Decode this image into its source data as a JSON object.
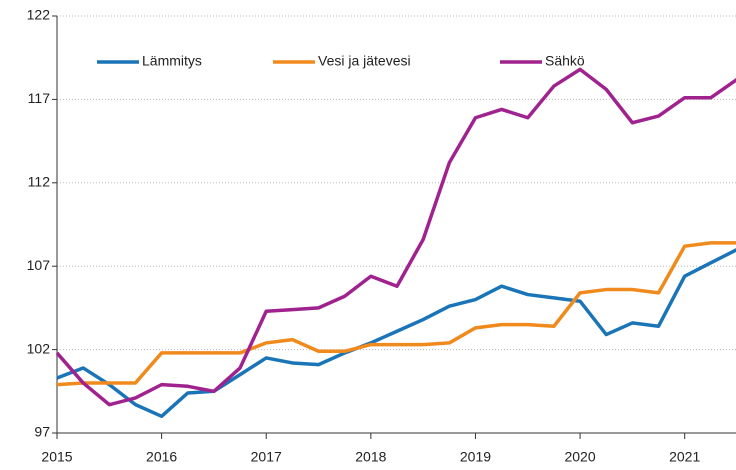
{
  "chart_data": {
    "type": "line",
    "x": [
      2015,
      2015.25,
      2015.5,
      2015.75,
      2016,
      2016.25,
      2016.5,
      2016.75,
      2017,
      2017.25,
      2017.5,
      2017.75,
      2018,
      2018.25,
      2018.5,
      2018.75,
      2019,
      2019.25,
      2019.5,
      2019.75,
      2020,
      2020.25,
      2020.5,
      2020.75,
      2021,
      2021.25,
      2021.5
    ],
    "series": [
      {
        "name": "Lämmitys",
        "color": "#1a74b8",
        "values": [
          100.3,
          100.9,
          99.9,
          98.7,
          98.0,
          99.4,
          99.5,
          100.5,
          101.5,
          101.2,
          101.1,
          101.8,
          102.4,
          103.1,
          103.8,
          104.6,
          105.0,
          105.8,
          105.3,
          105.1,
          104.9,
          102.9,
          103.6,
          103.4,
          106.4,
          107.2,
          108.0
        ]
      },
      {
        "name": "Vesi ja jätevesi",
        "color": "#f08a1c",
        "values": [
          99.9,
          100.0,
          100.0,
          100.0,
          101.8,
          101.8,
          101.8,
          101.8,
          102.4,
          102.6,
          101.9,
          101.9,
          102.3,
          102.3,
          102.3,
          102.4,
          103.3,
          103.5,
          103.5,
          103.4,
          105.4,
          105.6,
          105.6,
          105.4,
          108.2,
          108.4,
          108.4
        ]
      },
      {
        "name": "Sähkö",
        "color": "#a0228e",
        "values": [
          101.8,
          100.0,
          98.7,
          99.1,
          99.9,
          99.8,
          99.5,
          100.9,
          104.3,
          104.4,
          104.5,
          105.2,
          106.4,
          105.8,
          108.6,
          113.2,
          115.9,
          116.4,
          115.9,
          117.8,
          118.8,
          117.6,
          115.6,
          116.0,
          117.1,
          117.1,
          118.2
        ]
      }
    ],
    "xlim": [
      2015,
      2021.5
    ],
    "xticks": [
      2015,
      2016,
      2017,
      2018,
      2019,
      2020,
      2021
    ],
    "ylim": [
      97,
      122
    ],
    "yticks": [
      97,
      102,
      107,
      112,
      117,
      122
    ],
    "grid": true,
    "legend": "top-left"
  }
}
